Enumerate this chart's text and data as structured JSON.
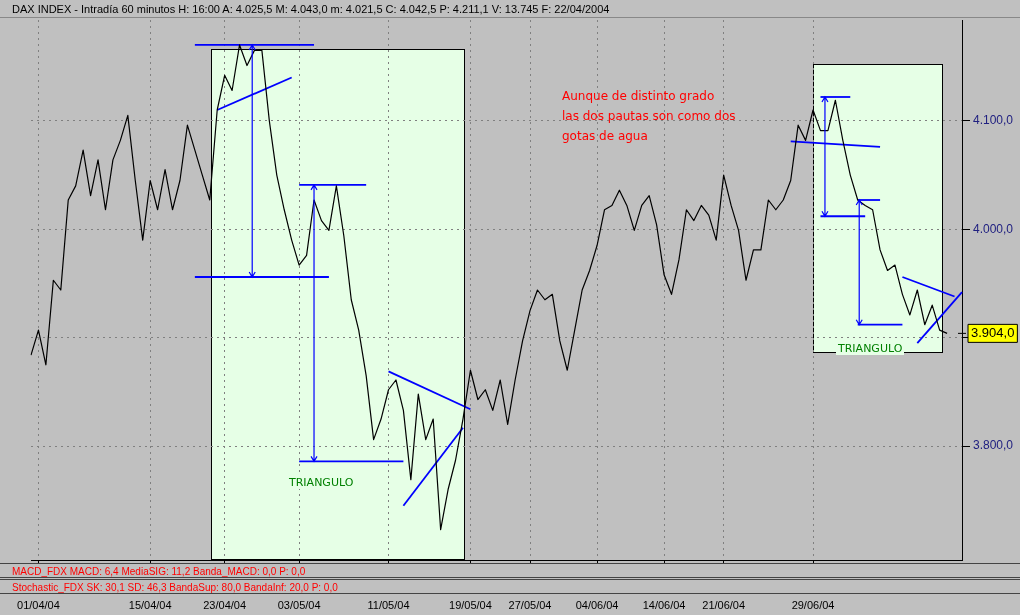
{
  "chart_data": {
    "type": "line",
    "title": "DAX INDEX - Intradía 60 minutos H: 16:00 A: 4.025,5 M: 4.043,0 m: 4.021,5 C: 4.042,5 P: 4.211,1 V: 13.745 F: 22/04/2004",
    "categories": [
      null,
      "01/04/04",
      null,
      null,
      null,
      null,
      null,
      null,
      null,
      null,
      null,
      null,
      null,
      null,
      null,
      null,
      "15/04/04",
      null,
      null,
      null,
      null,
      null,
      null,
      null,
      null,
      null,
      "23/04/04",
      null,
      null,
      null,
      null,
      null,
      null,
      null,
      null,
      null,
      "03/05/04",
      null,
      null,
      null,
      null,
      null,
      null,
      null,
      null,
      null,
      null,
      null,
      "11/05/04",
      null,
      null,
      null,
      null,
      null,
      null,
      null,
      null,
      null,
      null,
      "19/05/04",
      null,
      null,
      null,
      null,
      null,
      null,
      null,
      "27/05/04",
      null,
      null,
      null,
      null,
      null,
      null,
      null,
      null,
      "04/06/04",
      null,
      null,
      null,
      null,
      null,
      null,
      null,
      null,
      "14/06/04",
      null,
      null,
      null,
      null,
      null,
      null,
      null,
      "21/06/04",
      null,
      null,
      null,
      null,
      null,
      null,
      null,
      null,
      null,
      null,
      null,
      "29/06/04",
      null,
      null,
      null,
      null,
      null,
      null,
      null,
      null,
      null,
      null,
      null,
      null,
      null,
      null,
      null,
      null,
      null,
      null,
      null,
      null
    ],
    "ylim": [
      3695,
      4193
    ],
    "yticks": [
      {
        "value": 3800,
        "label": "3.800,0"
      },
      {
        "value": 3900,
        "label": null
      },
      {
        "value": 4000,
        "label": "4.000,0"
      },
      {
        "value": 4100,
        "label": "4.100,0"
      }
    ],
    "grid": true,
    "legend": false,
    "marker": "none",
    "line_style": "solid",
    "series": [
      {
        "color": "#000000",
        "values": [
          3884,
          3907,
          3875,
          3953,
          3944,
          4027,
          4040,
          4073,
          4031,
          4064,
          4018,
          4064,
          4082,
          4105,
          4045,
          3990,
          4045,
          4018,
          4055,
          4018,
          4045,
          4096,
          4073,
          4050,
          4027,
          4110,
          4142,
          4128,
          4170,
          4151,
          4165,
          4165,
          4100,
          4050,
          4018,
          3990,
          3967,
          3976,
          4027,
          4008,
          3999,
          4040,
          3994,
          3935,
          3907,
          3865,
          3806,
          3825,
          3852,
          3861,
          3833,
          3769,
          3848,
          3806,
          3825,
          3723,
          3760,
          3787,
          3825,
          3870,
          3843,
          3852,
          3833,
          3861,
          3820,
          3861,
          3897,
          3925,
          3944,
          3935,
          3940,
          3897,
          3870,
          3907,
          3944,
          3962,
          3985,
          4018,
          4022,
          4036,
          4022,
          3999,
          4022,
          4031,
          4004,
          3958,
          3940,
          3972,
          4018,
          4008,
          4022,
          4013,
          3990,
          4050,
          4022,
          3999,
          3953,
          3981,
          3981,
          4027,
          4018,
          4027,
          4045,
          4096,
          4082,
          4110,
          4091,
          4091,
          4119,
          4082,
          4050,
          4027,
          4022,
          4018,
          3981,
          3962,
          3967,
          3940,
          3921,
          3944,
          3912,
          3930,
          3907,
          3904,
          null,
          null
        ],
        "value_labels": [
          null,
          null,
          null,
          null,
          null,
          null,
          null,
          null,
          null,
          null,
          null,
          null,
          null,
          null,
          null,
          null,
          null,
          null,
          null,
          null,
          null,
          null,
          null,
          null,
          null,
          null,
          null,
          null,
          null,
          null,
          null,
          null,
          null,
          null,
          null,
          null,
          null,
          null,
          null,
          null,
          null,
          null,
          null,
          null,
          null,
          null,
          null,
          null,
          null,
          null,
          null,
          null,
          null,
          null,
          null,
          null,
          null,
          null,
          null,
          null,
          null,
          null,
          null,
          null,
          null,
          null,
          null,
          null,
          null,
          null,
          null,
          null,
          null,
          null,
          null,
          null,
          null,
          null,
          null,
          null,
          null,
          null,
          null,
          null,
          null,
          null,
          null,
          null,
          null,
          null,
          null,
          null,
          null,
          null,
          null,
          null,
          null,
          null,
          null,
          null,
          null,
          null,
          null,
          null,
          null,
          null,
          null,
          null,
          null,
          null,
          null,
          null,
          null,
          null,
          null,
          null,
          null,
          null,
          null,
          null,
          null,
          null,
          null,
          "3.904,0",
          null,
          null
        ]
      },
      {
        "color": "#0000ff",
        "values": [
          null,
          null,
          null,
          null,
          null,
          null,
          null,
          null,
          null,
          null,
          null,
          null,
          null,
          null,
          null,
          null,
          null,
          null,
          null,
          null,
          null,
          null,
          4170,
          null,
          null,
          null,
          null,
          null,
          null,
          null,
          null,
          null,
          null,
          null,
          null,
          null,
          null,
          null,
          4170,
          null,
          null,
          null,
          null,
          null,
          null,
          null,
          null,
          null,
          null,
          null,
          null,
          null,
          null,
          null,
          null,
          null,
          null,
          null,
          null,
          null,
          null,
          null,
          null,
          null,
          null,
          null,
          null,
          null,
          null,
          null,
          null,
          null,
          null,
          null,
          null,
          null,
          null,
          null,
          null,
          null,
          null,
          null,
          null,
          null,
          null,
          null,
          null,
          null,
          null,
          null,
          null,
          null,
          null,
          null,
          null,
          null,
          null,
          null,
          null,
          null,
          null,
          null,
          null,
          null,
          null,
          null,
          null,
          null,
          null,
          null,
          null,
          null,
          null,
          null,
          null,
          null,
          null,
          null,
          null,
          null,
          null,
          null,
          null,
          null,
          null,
          null
        ]
      },
      {
        "color": "#0000ff",
        "values": [
          null,
          null,
          null,
          null,
          null,
          null,
          null,
          null,
          null,
          null,
          null,
          null,
          null,
          null,
          null,
          null,
          null,
          null,
          null,
          null,
          null,
          null,
          null,
          null,
          null,
          4110,
          null,
          null,
          null,
          null,
          null,
          null,
          null,
          null,
          null,
          4140,
          null,
          null,
          null,
          null,
          null,
          null,
          null,
          null,
          null,
          null,
          null,
          null,
          null,
          null,
          null,
          null,
          null,
          null,
          null,
          null,
          null,
          null,
          null,
          null,
          null,
          null,
          null,
          null,
          null,
          null,
          null,
          null,
          null,
          null,
          null,
          null,
          null,
          null,
          null,
          null,
          null,
          null,
          null,
          null,
          null,
          null,
          null,
          null,
          null,
          null,
          null,
          null,
          null,
          null,
          null,
          null,
          null,
          null,
          null,
          null,
          null,
          null,
          null,
          null,
          null,
          null,
          null,
          null,
          null,
          null,
          null,
          null,
          null,
          null,
          null,
          null,
          null,
          null,
          null,
          null,
          null,
          null,
          null,
          null,
          null,
          null,
          null,
          null,
          null,
          null
        ]
      },
      {
        "color": "#0000ff",
        "values": [
          null,
          null,
          null,
          null,
          null,
          null,
          null,
          null,
          null,
          null,
          null,
          null,
          null,
          null,
          null,
          null,
          null,
          null,
          null,
          null,
          null,
          null,
          3956,
          null,
          null,
          null,
          null,
          null,
          null,
          null,
          null,
          null,
          null,
          null,
          null,
          null,
          null,
          null,
          null,
          null,
          3956,
          null,
          null,
          null,
          null,
          null,
          null,
          null,
          null,
          null,
          null,
          null,
          null,
          null,
          null,
          null,
          null,
          null,
          null,
          null,
          null,
          null,
          null,
          null,
          null,
          null,
          null,
          null,
          null,
          null,
          null,
          null,
          null,
          null,
          null,
          null,
          null,
          null,
          null,
          null,
          null,
          null,
          null,
          null,
          null,
          null,
          null,
          null,
          null,
          null,
          null,
          null,
          null,
          null,
          null,
          null,
          null,
          null,
          null,
          null,
          null,
          null,
          null,
          null,
          null,
          null,
          null,
          null,
          null,
          null,
          null,
          null,
          null,
          null,
          null,
          null,
          null,
          null,
          null,
          null,
          null,
          null,
          null,
          null,
          null,
          null
        ]
      },
      {
        "color": "#0000ff",
        "values": [
          null,
          null,
          null,
          null,
          null,
          null,
          null,
          null,
          null,
          null,
          null,
          null,
          null,
          null,
          null,
          null,
          null,
          null,
          null,
          null,
          null,
          null,
          null,
          null,
          null,
          null,
          null,
          null,
          null,
          null,
          null,
          null,
          null,
          null,
          null,
          null,
          4041,
          null,
          null,
          null,
          null,
          null,
          null,
          null,
          null,
          4041,
          null,
          null,
          null,
          null,
          null,
          null,
          null,
          null,
          null,
          null,
          null,
          null,
          null,
          null,
          null,
          null,
          null,
          null,
          null,
          null,
          null,
          null,
          null,
          null,
          null,
          null,
          null,
          null,
          null,
          null,
          null,
          null,
          null,
          null,
          null,
          null,
          null,
          null,
          null,
          null,
          null,
          null,
          null,
          null,
          null,
          null,
          null,
          null,
          null,
          null,
          null,
          null,
          null,
          null,
          null,
          null,
          null,
          null,
          null,
          null,
          null,
          null,
          null,
          null,
          null,
          null,
          null,
          null,
          null,
          null,
          null,
          null,
          null,
          null,
          null,
          null,
          null,
          null,
          null,
          null
        ]
      },
      {
        "color": "#0000ff",
        "values": [
          null,
          null,
          null,
          null,
          null,
          null,
          null,
          null,
          null,
          null,
          null,
          null,
          null,
          null,
          null,
          null,
          null,
          null,
          null,
          null,
          null,
          null,
          null,
          null,
          null,
          null,
          null,
          null,
          null,
          null,
          null,
          null,
          null,
          null,
          null,
          null,
          3786,
          null,
          null,
          null,
          null,
          null,
          null,
          null,
          null,
          null,
          null,
          null,
          null,
          null,
          3786,
          null,
          null,
          null,
          null,
          null,
          null,
          null,
          null,
          null,
          null,
          null,
          null,
          null,
          null,
          null,
          null,
          null,
          null,
          null,
          null,
          null,
          null,
          null,
          null,
          null,
          null,
          null,
          null,
          null,
          null,
          null,
          null,
          null,
          null,
          null,
          null,
          null,
          null,
          null,
          null,
          null,
          null,
          null,
          null,
          null,
          null,
          null,
          null,
          null,
          null,
          null,
          null,
          null,
          null,
          null,
          null,
          null,
          null,
          null,
          null,
          null,
          null,
          null,
          null,
          null,
          null,
          null,
          null,
          null,
          null,
          null,
          null,
          null,
          null,
          null
        ]
      },
      {
        "color": "#0000ff",
        "values": [
          null,
          null,
          null,
          null,
          null,
          null,
          null,
          null,
          null,
          null,
          null,
          null,
          null,
          null,
          null,
          null,
          null,
          null,
          null,
          null,
          null,
          null,
          null,
          null,
          null,
          null,
          null,
          null,
          null,
          null,
          null,
          null,
          null,
          null,
          null,
          null,
          null,
          null,
          null,
          null,
          null,
          null,
          null,
          null,
          null,
          null,
          null,
          null,
          3869,
          null,
          null,
          null,
          null,
          null,
          null,
          null,
          null,
          null,
          null,
          3834,
          null,
          null,
          null,
          null,
          null,
          null,
          null,
          null,
          null,
          null,
          null,
          null,
          null,
          null,
          null,
          null,
          null,
          null,
          null,
          null,
          null,
          null,
          null,
          null,
          null,
          null,
          null,
          null,
          null,
          null,
          null,
          null,
          null,
          null,
          null,
          null,
          null,
          null,
          null,
          null,
          null,
          null,
          null,
          null,
          null,
          null,
          null,
          null,
          null,
          null,
          null,
          null,
          null,
          null,
          null,
          null,
          null,
          null,
          null,
          null,
          null,
          null,
          null,
          null,
          null,
          null
        ]
      },
      {
        "color": "#0000ff",
        "values": [
          null,
          null,
          null,
          null,
          null,
          null,
          null,
          null,
          null,
          null,
          null,
          null,
          null,
          null,
          null,
          null,
          null,
          null,
          null,
          null,
          null,
          null,
          null,
          null,
          null,
          null,
          null,
          null,
          null,
          null,
          null,
          null,
          null,
          null,
          null,
          null,
          null,
          null,
          null,
          null,
          null,
          null,
          null,
          null,
          null,
          null,
          null,
          null,
          null,
          null,
          3745,
          null,
          null,
          null,
          null,
          null,
          null,
          null,
          3817,
          null,
          null,
          null,
          null,
          null,
          null,
          null,
          null,
          null,
          null,
          null,
          null,
          null,
          null,
          null,
          null,
          null,
          null,
          null,
          null,
          null,
          null,
          null,
          null,
          null,
          null,
          null,
          null,
          null,
          null,
          null,
          null,
          null,
          null,
          null,
          null,
          null,
          null,
          null,
          null,
          null,
          null,
          null,
          null,
          null,
          null,
          null,
          null,
          null,
          null,
          null,
          null,
          null,
          null,
          null,
          null,
          null,
          null,
          null,
          null,
          null,
          null,
          null,
          null,
          null,
          null,
          null
        ]
      },
      {
        "color": "#0000ff",
        "values": [
          null,
          null,
          null,
          null,
          null,
          null,
          null,
          null,
          null,
          null,
          null,
          null,
          null,
          null,
          null,
          null,
          null,
          null,
          null,
          null,
          null,
          null,
          null,
          null,
          null,
          null,
          null,
          null,
          null,
          null,
          null,
          null,
          null,
          null,
          null,
          null,
          null,
          null,
          null,
          null,
          null,
          null,
          null,
          null,
          null,
          null,
          null,
          null,
          null,
          null,
          null,
          null,
          null,
          null,
          null,
          null,
          null,
          null,
          null,
          null,
          null,
          null,
          null,
          null,
          null,
          null,
          null,
          null,
          null,
          null,
          null,
          null,
          null,
          null,
          null,
          null,
          null,
          null,
          null,
          null,
          null,
          null,
          null,
          null,
          null,
          null,
          null,
          null,
          null,
          null,
          null,
          null,
          null,
          null,
          null,
          null,
          null,
          null,
          null,
          null,
          null,
          null,
          4081,
          null,
          null,
          null,
          null,
          null,
          null,
          null,
          null,
          null,
          null,
          null,
          4076,
          null,
          null,
          null,
          null,
          null,
          null,
          null,
          null,
          null,
          null,
          null
        ]
      },
      {
        "color": "#0000ff",
        "values": [
          null,
          null,
          null,
          null,
          null,
          null,
          null,
          null,
          null,
          null,
          null,
          null,
          null,
          null,
          null,
          null,
          null,
          null,
          null,
          null,
          null,
          null,
          null,
          null,
          null,
          null,
          null,
          null,
          null,
          null,
          null,
          null,
          null,
          null,
          null,
          null,
          null,
          null,
          null,
          null,
          null,
          null,
          null,
          null,
          null,
          null,
          null,
          null,
          null,
          null,
          null,
          null,
          null,
          null,
          null,
          null,
          null,
          null,
          null,
          null,
          null,
          null,
          null,
          null,
          null,
          null,
          null,
          null,
          null,
          null,
          null,
          null,
          null,
          null,
          null,
          null,
          null,
          null,
          null,
          null,
          null,
          null,
          null,
          null,
          null,
          null,
          null,
          null,
          null,
          null,
          null,
          null,
          null,
          null,
          null,
          null,
          null,
          null,
          null,
          null,
          null,
          null,
          null,
          null,
          null,
          null,
          4122,
          null,
          null,
          null,
          4122,
          null,
          null,
          null,
          null,
          null,
          null,
          null,
          null,
          null,
          null,
          null,
          null,
          null,
          null,
          null
        ]
      },
      {
        "color": "#0000ff",
        "values": [
          null,
          null,
          null,
          null,
          null,
          null,
          null,
          null,
          null,
          null,
          null,
          null,
          null,
          null,
          null,
          null,
          null,
          null,
          null,
          null,
          null,
          null,
          null,
          null,
          null,
          null,
          null,
          null,
          null,
          null,
          null,
          null,
          null,
          null,
          null,
          null,
          null,
          null,
          null,
          null,
          null,
          null,
          null,
          null,
          null,
          null,
          null,
          null,
          null,
          null,
          null,
          null,
          null,
          null,
          null,
          null,
          null,
          null,
          null,
          null,
          null,
          null,
          null,
          null,
          null,
          null,
          null,
          null,
          null,
          null,
          null,
          null,
          null,
          null,
          null,
          null,
          null,
          null,
          null,
          null,
          null,
          null,
          null,
          null,
          null,
          null,
          null,
          null,
          null,
          null,
          null,
          null,
          null,
          null,
          null,
          null,
          null,
          null,
          null,
          null,
          null,
          null,
          null,
          null,
          null,
          null,
          4012,
          null,
          null,
          null,
          null,
          null,
          4012,
          null,
          null,
          null,
          null,
          null,
          null,
          null,
          null,
          null,
          null,
          null,
          null,
          null
        ]
      },
      {
        "color": "#0000ff",
        "values": [
          null,
          null,
          null,
          null,
          null,
          null,
          null,
          null,
          null,
          null,
          null,
          null,
          null,
          null,
          null,
          null,
          null,
          null,
          null,
          null,
          null,
          null,
          null,
          null,
          null,
          null,
          null,
          null,
          null,
          null,
          null,
          null,
          null,
          null,
          null,
          null,
          null,
          null,
          null,
          null,
          null,
          null,
          null,
          null,
          null,
          null,
          null,
          null,
          null,
          null,
          null,
          null,
          null,
          null,
          null,
          null,
          null,
          null,
          null,
          null,
          null,
          null,
          null,
          null,
          null,
          null,
          null,
          null,
          null,
          null,
          null,
          null,
          null,
          null,
          null,
          null,
          null,
          null,
          null,
          null,
          null,
          null,
          null,
          null,
          null,
          null,
          null,
          null,
          null,
          null,
          null,
          null,
          null,
          null,
          null,
          null,
          null,
          null,
          null,
          null,
          null,
          null,
          null,
          null,
          null,
          null,
          null,
          null,
          null,
          null,
          null,
          4027,
          null,
          null,
          4027,
          null,
          null,
          null,
          null,
          null,
          null,
          null,
          null,
          null,
          null,
          null
        ]
      },
      {
        "color": "#0000ff",
        "values": [
          null,
          null,
          null,
          null,
          null,
          null,
          null,
          null,
          null,
          null,
          null,
          null,
          null,
          null,
          null,
          null,
          null,
          null,
          null,
          null,
          null,
          null,
          null,
          null,
          null,
          null,
          null,
          null,
          null,
          null,
          null,
          null,
          null,
          null,
          null,
          null,
          null,
          null,
          null,
          null,
          null,
          null,
          null,
          null,
          null,
          null,
          null,
          null,
          null,
          null,
          null,
          null,
          null,
          null,
          null,
          null,
          null,
          null,
          null,
          null,
          null,
          null,
          null,
          null,
          null,
          null,
          null,
          null,
          null,
          null,
          null,
          null,
          null,
          null,
          null,
          null,
          null,
          null,
          null,
          null,
          null,
          null,
          null,
          null,
          null,
          null,
          null,
          null,
          null,
          null,
          null,
          null,
          null,
          null,
          null,
          null,
          null,
          null,
          null,
          null,
          null,
          null,
          null,
          null,
          null,
          null,
          null,
          null,
          null,
          null,
          null,
          3912,
          null,
          null,
          null,
          null,
          null,
          3912,
          null,
          null,
          null,
          null,
          null,
          null,
          null,
          null
        ]
      },
      {
        "color": "#0000ff",
        "values": [
          null,
          null,
          null,
          null,
          null,
          null,
          null,
          null,
          null,
          null,
          null,
          null,
          null,
          null,
          null,
          null,
          null,
          null,
          null,
          null,
          null,
          null,
          null,
          null,
          null,
          null,
          null,
          null,
          null,
          null,
          null,
          null,
          null,
          null,
          null,
          null,
          null,
          null,
          null,
          null,
          null,
          null,
          null,
          null,
          null,
          null,
          null,
          null,
          null,
          null,
          null,
          null,
          null,
          null,
          null,
          null,
          null,
          null,
          null,
          null,
          null,
          null,
          null,
          null,
          null,
          null,
          null,
          null,
          null,
          null,
          null,
          null,
          null,
          null,
          null,
          null,
          null,
          null,
          null,
          null,
          null,
          null,
          null,
          null,
          null,
          null,
          null,
          null,
          null,
          null,
          null,
          null,
          null,
          null,
          null,
          null,
          null,
          null,
          null,
          null,
          null,
          null,
          null,
          null,
          null,
          null,
          null,
          null,
          null,
          null,
          null,
          null,
          null,
          null,
          null,
          null,
          null,
          3956,
          null,
          null,
          null,
          null,
          null,
          null,
          3938,
          null
        ]
      },
      {
        "color": "#0000ff",
        "values": [
          null,
          null,
          null,
          null,
          null,
          null,
          null,
          null,
          null,
          null,
          null,
          null,
          null,
          null,
          null,
          null,
          null,
          null,
          null,
          null,
          null,
          null,
          null,
          null,
          null,
          null,
          null,
          null,
          null,
          null,
          null,
          null,
          null,
          null,
          null,
          null,
          null,
          null,
          null,
          null,
          null,
          null,
          null,
          null,
          null,
          null,
          null,
          null,
          null,
          null,
          null,
          null,
          null,
          null,
          null,
          null,
          null,
          null,
          null,
          null,
          null,
          null,
          null,
          null,
          null,
          null,
          null,
          null,
          null,
          null,
          null,
          null,
          null,
          null,
          null,
          null,
          null,
          null,
          null,
          null,
          null,
          null,
          null,
          null,
          null,
          null,
          null,
          null,
          null,
          null,
          null,
          null,
          null,
          null,
          null,
          null,
          null,
          null,
          null,
          null,
          null,
          null,
          null,
          null,
          null,
          null,
          null,
          null,
          null,
          null,
          null,
          null,
          null,
          null,
          null,
          null,
          null,
          null,
          null,
          3895,
          null,
          null,
          null,
          null,
          null,
          3942
        ]
      }
    ],
    "annotations": [
      "Aunque de distinto grado\nlas dos pautas son como dos\ngotas de agua",
      "TRIANGULO",
      "TRIANGULO",
      "MACD_FDX MACD: 6,4 MediaSIG: 11,2 Banda_MACD: 0,0 P: 0,0",
      "Stochastic_FDX SK: 30,1 SD: 46,3 BandaSup: 80,0 BandaInf: 20,0 P: 0,0"
    ]
  }
}
